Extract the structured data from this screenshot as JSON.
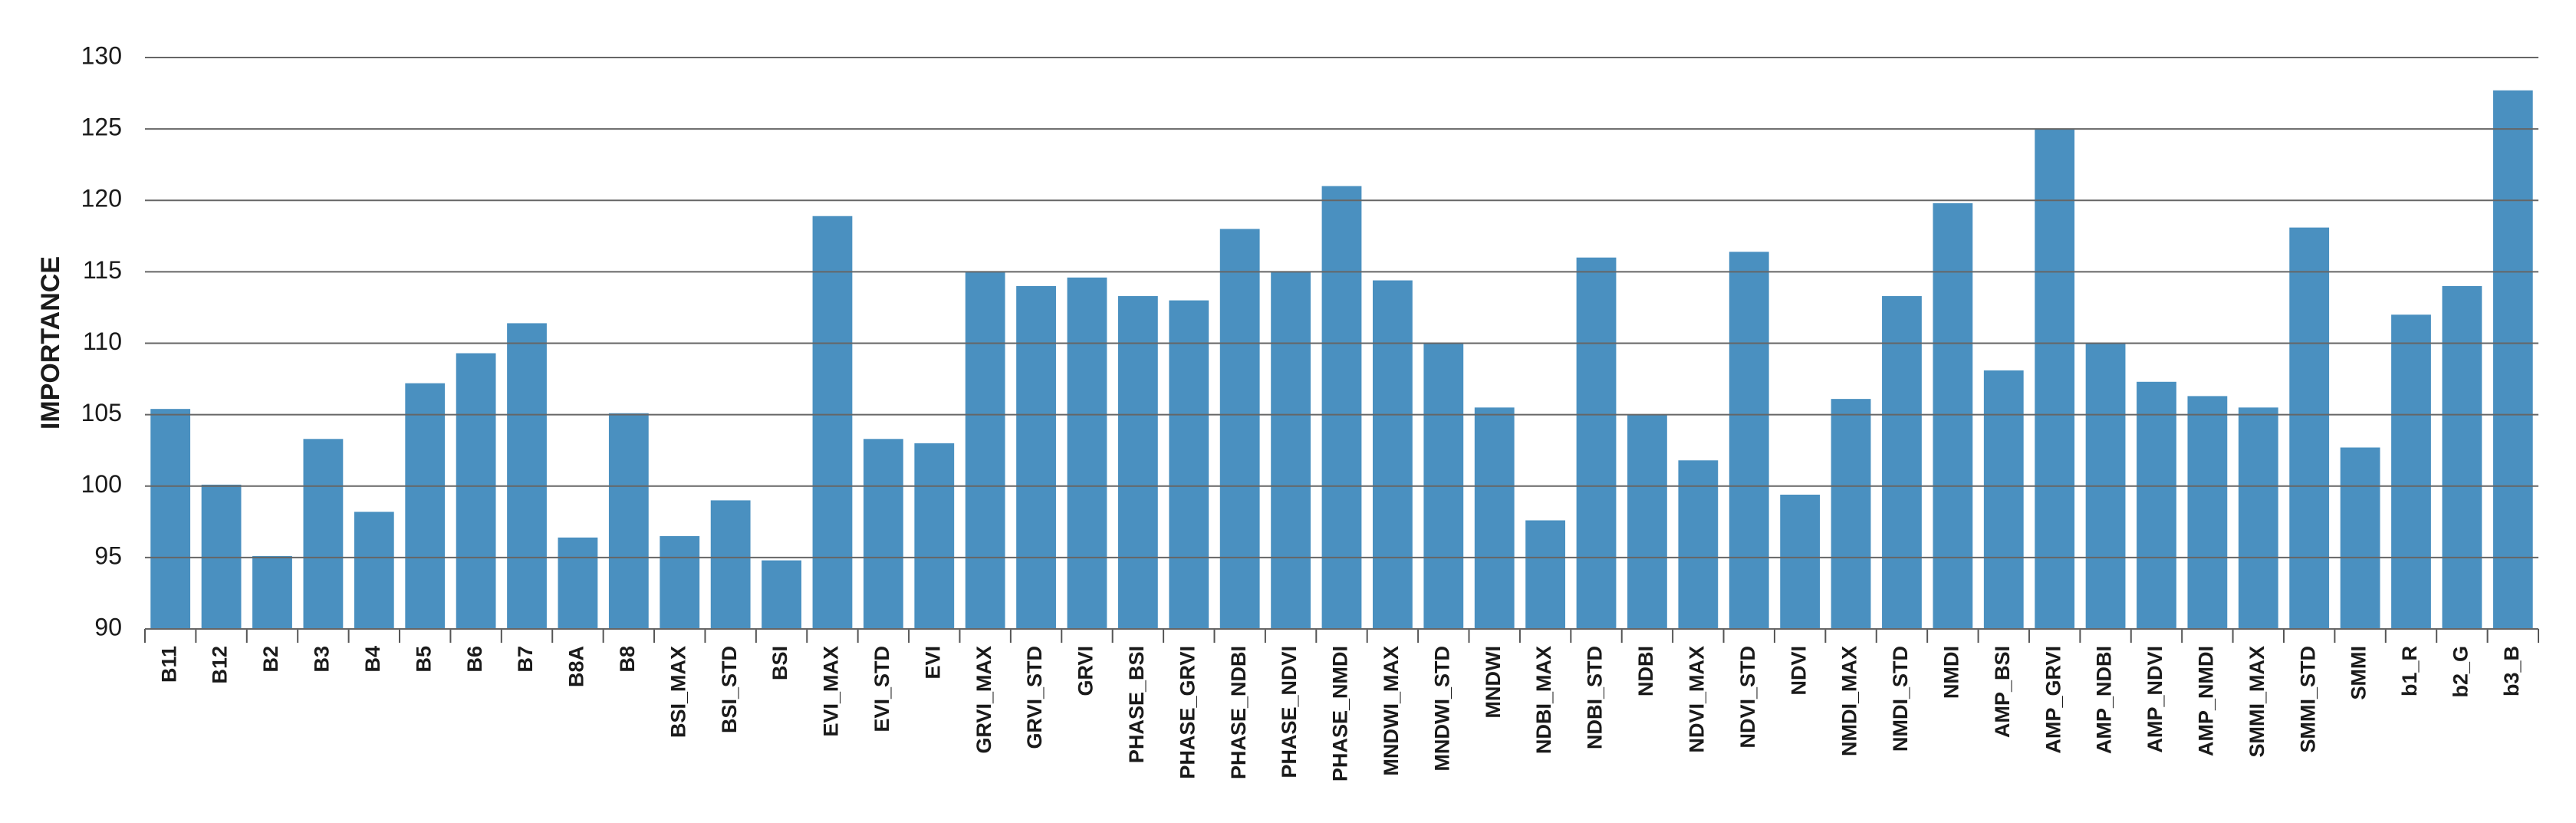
{
  "chart_data": {
    "type": "bar",
    "y_label": "IMPORTANCE",
    "categories": [
      "B11",
      "B12",
      "B2",
      "B3",
      "B4",
      "B5",
      "B6",
      "B7",
      "B8A",
      "B8",
      "BSI_MAX",
      "BSI_STD",
      "BSI",
      "EVI_MAX",
      "EVI_STD",
      "EVI",
      "GRVI_MAX",
      "GRVI_STD",
      "GRVI",
      "PHASE_BSI",
      "PHASE_GRVI",
      "PHASE_NDBI",
      "PHASE_NDVI",
      "PHASE_NMDI",
      "MNDWI_MAX",
      "MNDWI_STD",
      "MNDWI",
      "NDBI_MAX",
      "NDBI_STD",
      "NDBI",
      "NDVI_MAX",
      "NDVI_STD",
      "NDVI",
      "NMDI_MAX",
      "NMDI_STD",
      "NMDI",
      "AMP_BSI",
      "AMP_GRVI",
      "AMP_NDBI",
      "AMP_NDVI",
      "AMP_NMDI",
      "SMMI_MAX",
      "SMMI_STD",
      "SMMI",
      "b1_R",
      "b2_G",
      "b3_B"
    ],
    "values": [
      105.4,
      100.1,
      95.1,
      103.3,
      98.2,
      107.2,
      109.3,
      111.4,
      96.4,
      105.1,
      96.5,
      99,
      94.8,
      118.9,
      103.3,
      103,
      115,
      114,
      114.6,
      113.3,
      113,
      118,
      115,
      121,
      114.4,
      110,
      105.5,
      97.6,
      116,
      105,
      101.8,
      116.4,
      99.4,
      106.1,
      113.3,
      119.8,
      108.1,
      125,
      110,
      107.3,
      106.3,
      105.5,
      118.1,
      102.7,
      112,
      114,
      127.7
    ],
    "color": "#4a90c0",
    "ylim": [
      90,
      130
    ],
    "yticks": [
      90,
      95,
      100,
      105,
      110,
      115,
      120,
      125,
      130
    ],
    "grid": true
  }
}
